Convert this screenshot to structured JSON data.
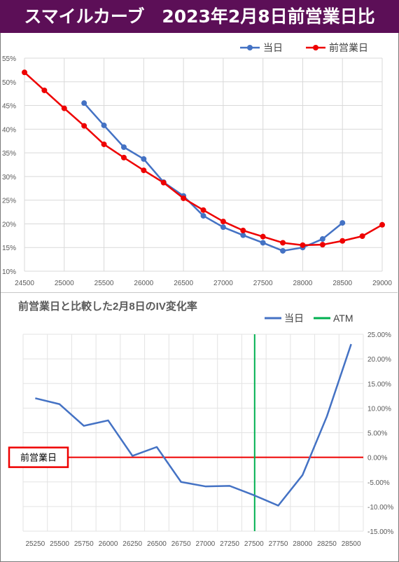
{
  "header": {
    "title": "スマイルカーブ　2023年2月8日前営業日比"
  },
  "colors": {
    "header_bg": "#5c0f57",
    "today": "#4472c4",
    "prev_day": "#ee0000",
    "atm": "#00b050",
    "zero_line": "#ee0000"
  },
  "chart_data": [
    {
      "type": "line",
      "title": "",
      "legend_position": "top-right",
      "grid": true,
      "x_ticks": [
        24500,
        25000,
        25500,
        26000,
        26500,
        27000,
        27500,
        28000,
        28500,
        29000
      ],
      "y_ticks": [
        "10%",
        "15%",
        "20%",
        "25%",
        "30%",
        "35%",
        "40%",
        "45%",
        "50%",
        "55%"
      ],
      "xlim": [
        24500,
        29000
      ],
      "ylim": [
        10,
        55
      ],
      "series": [
        {
          "name": "当日",
          "color": "#4472c4",
          "x": [
            25250,
            25500,
            25750,
            26000,
            26250,
            26500,
            26750,
            27000,
            27250,
            27500,
            27750,
            28000,
            28250,
            28500
          ],
          "values": [
            45.5,
            40.8,
            36.2,
            33.7,
            28.8,
            25.9,
            21.7,
            19.3,
            17.6,
            16.0,
            14.3,
            15.0,
            16.8,
            20.2
          ]
        },
        {
          "name": "前営業日",
          "color": "#ee0000",
          "x": [
            24500,
            24750,
            25000,
            25250,
            25500,
            25750,
            26000,
            26250,
            26500,
            26750,
            27000,
            27250,
            27500,
            27750,
            28000,
            28250,
            28500,
            28750,
            29000
          ],
          "values": [
            52.0,
            48.2,
            44.4,
            40.7,
            36.8,
            34.0,
            31.3,
            28.7,
            25.4,
            22.9,
            20.5,
            18.6,
            17.3,
            16.0,
            15.5,
            15.6,
            16.4,
            17.4,
            19.8
          ]
        }
      ]
    },
    {
      "type": "line",
      "title": "前営業日と比較した2月8日のIV変化率",
      "legend_position": "top-right",
      "grid": true,
      "categories": [
        "25250",
        "25500",
        "25750",
        "26000",
        "26250",
        "26500",
        "26750",
        "27000",
        "27250",
        "27500",
        "27750",
        "28000",
        "28250",
        "28500"
      ],
      "y_ticks": [
        "25.00%",
        "20.00%",
        "15.00%",
        "10.00%",
        "5.00%",
        "0.00%",
        "-5.00%",
        "-10.00%",
        "-15.00%"
      ],
      "ylim": [
        -15,
        25
      ],
      "atm_strike": "27500",
      "zero_label": "前営業日",
      "series": [
        {
          "name": "当日",
          "color": "#4472c4",
          "values": [
            12.0,
            10.8,
            6.4,
            7.5,
            0.3,
            2.1,
            -5.0,
            -5.9,
            -5.8,
            -7.7,
            -9.8,
            -3.6,
            8.3,
            23.0
          ]
        }
      ],
      "legend_atm": "ATM"
    }
  ]
}
